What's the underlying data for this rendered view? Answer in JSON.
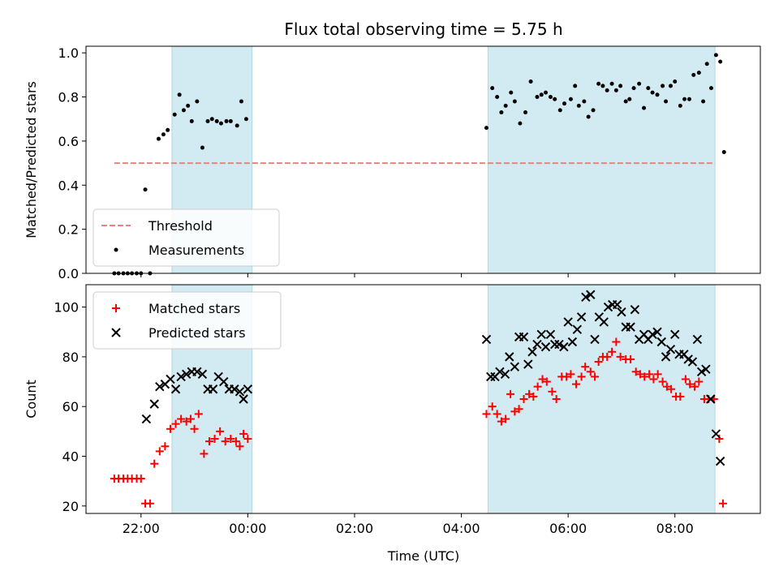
{
  "chart_data": {
    "title": "Flux total observing time = 5.75 h",
    "xlabel": "Time (UTC)",
    "x_ticks": [
      "22:00",
      "00:00",
      "02:00",
      "04:00",
      "06:00",
      "08:00"
    ],
    "x_ticks_hours": [
      22,
      24,
      26,
      28,
      30,
      32
    ],
    "xlim_hours": [
      20.97,
      33.6
    ],
    "shaded_intervals_hours": [
      [
        22.58,
        24.08
      ],
      [
        28.5,
        32.75
      ]
    ],
    "shade_color": "#add8e6",
    "subplots": [
      {
        "type": "scatter",
        "ylabel": "Matched/Predicted stars",
        "ylim": [
          0,
          1.03
        ],
        "yticks": [
          0.0,
          0.2,
          0.4,
          0.6,
          0.8,
          1.0
        ],
        "ytick_labels": [
          "0.0",
          "0.2",
          "0.4",
          "0.6",
          "0.8",
          "1.0"
        ],
        "legend_position": "lower-left",
        "threshold": {
          "name": "Threshold",
          "value": 0.5,
          "x_range": [
            21.5,
            32.75
          ],
          "color": "#f08080",
          "style": "dashed"
        },
        "series": [
          {
            "name": "Measurements",
            "color": "#000000",
            "points": [
              [
                21.5,
                0.0
              ],
              [
                21.58,
                0.0
              ],
              [
                21.67,
                0.0
              ],
              [
                21.75,
                0.0
              ],
              [
                21.83,
                0.0
              ],
              [
                21.92,
                0.0
              ],
              [
                22.0,
                0.0
              ],
              [
                22.08,
                0.38
              ],
              [
                22.17,
                0.0
              ],
              [
                22.33,
                0.61
              ],
              [
                22.42,
                0.63
              ],
              [
                22.5,
                0.65
              ],
              [
                22.63,
                0.72
              ],
              [
                22.72,
                0.81
              ],
              [
                22.8,
                0.74
              ],
              [
                22.88,
                0.76
              ],
              [
                22.95,
                0.69
              ],
              [
                23.05,
                0.78
              ],
              [
                23.15,
                0.57
              ],
              [
                23.25,
                0.69
              ],
              [
                23.33,
                0.7
              ],
              [
                23.42,
                0.69
              ],
              [
                23.5,
                0.68
              ],
              [
                23.6,
                0.69
              ],
              [
                23.68,
                0.69
              ],
              [
                23.8,
                0.67
              ],
              [
                23.88,
                0.78
              ],
              [
                23.97,
                0.7
              ],
              [
                28.47,
                0.66
              ],
              [
                28.58,
                0.84
              ],
              [
                28.67,
                0.8
              ],
              [
                28.75,
                0.73
              ],
              [
                28.83,
                0.76
              ],
              [
                28.93,
                0.82
              ],
              [
                29.0,
                0.78
              ],
              [
                29.1,
                0.68
              ],
              [
                29.2,
                0.73
              ],
              [
                29.3,
                0.87
              ],
              [
                29.42,
                0.8
              ],
              [
                29.5,
                0.81
              ],
              [
                29.58,
                0.82
              ],
              [
                29.67,
                0.8
              ],
              [
                29.75,
                0.79
              ],
              [
                29.85,
                0.74
              ],
              [
                29.93,
                0.77
              ],
              [
                30.05,
                0.79
              ],
              [
                30.13,
                0.85
              ],
              [
                30.2,
                0.76
              ],
              [
                30.3,
                0.78
              ],
              [
                30.38,
                0.71
              ],
              [
                30.47,
                0.74
              ],
              [
                30.57,
                0.86
              ],
              [
                30.65,
                0.85
              ],
              [
                30.73,
                0.83
              ],
              [
                30.82,
                0.86
              ],
              [
                30.9,
                0.83
              ],
              [
                30.98,
                0.85
              ],
              [
                31.08,
                0.78
              ],
              [
                31.15,
                0.79
              ],
              [
                31.23,
                0.84
              ],
              [
                31.33,
                0.86
              ],
              [
                31.42,
                0.75
              ],
              [
                31.5,
                0.84
              ],
              [
                31.58,
                0.82
              ],
              [
                31.67,
                0.81
              ],
              [
                31.77,
                0.85
              ],
              [
                31.83,
                0.78
              ],
              [
                31.92,
                0.85
              ],
              [
                32.0,
                0.87
              ],
              [
                32.1,
                0.76
              ],
              [
                32.18,
                0.79
              ],
              [
                32.27,
                0.79
              ],
              [
                32.35,
                0.9
              ],
              [
                32.45,
                0.91
              ],
              [
                32.53,
                0.78
              ],
              [
                32.6,
                0.95
              ],
              [
                32.68,
                0.84
              ],
              [
                32.77,
                0.99
              ],
              [
                32.85,
                0.96
              ],
              [
                32.92,
                0.55
              ]
            ]
          }
        ]
      },
      {
        "type": "scatter",
        "ylabel": "Count",
        "ylim": [
          17,
          109
        ],
        "yticks": [
          20,
          40,
          60,
          80,
          100
        ],
        "ytick_labels": [
          "20",
          "40",
          "60",
          "80",
          "100"
        ],
        "legend_position": "upper-left",
        "series": [
          {
            "name": "Matched stars",
            "marker": "plus",
            "color": "#ff0000",
            "points": [
              [
                21.5,
                31
              ],
              [
                21.58,
                31
              ],
              [
                21.67,
                31
              ],
              [
                21.75,
                31
              ],
              [
                21.83,
                31
              ],
              [
                21.92,
                31
              ],
              [
                22.0,
                31
              ],
              [
                22.08,
                21
              ],
              [
                22.17,
                21
              ],
              [
                22.25,
                37
              ],
              [
                22.35,
                42
              ],
              [
                22.45,
                44
              ],
              [
                22.55,
                51
              ],
              [
                22.65,
                53
              ],
              [
                22.75,
                55
              ],
              [
                22.85,
                54
              ],
              [
                22.93,
                55
              ],
              [
                23.0,
                51
              ],
              [
                23.08,
                57
              ],
              [
                23.18,
                41
              ],
              [
                23.28,
                46
              ],
              [
                23.38,
                47
              ],
              [
                23.48,
                50
              ],
              [
                23.58,
                46
              ],
              [
                23.68,
                47
              ],
              [
                23.78,
                46
              ],
              [
                23.85,
                44
              ],
              [
                23.92,
                49
              ],
              [
                24.0,
                47
              ],
              [
                28.47,
                57
              ],
              [
                28.58,
                60
              ],
              [
                28.67,
                57
              ],
              [
                28.75,
                54
              ],
              [
                28.83,
                55
              ],
              [
                28.92,
                65
              ],
              [
                29.0,
                58
              ],
              [
                29.08,
                59
              ],
              [
                29.17,
                63
              ],
              [
                29.27,
                65
              ],
              [
                29.35,
                64
              ],
              [
                29.43,
                68
              ],
              [
                29.52,
                71
              ],
              [
                29.6,
                70
              ],
              [
                29.7,
                66
              ],
              [
                29.78,
                63
              ],
              [
                29.88,
                72
              ],
              [
                29.97,
                72
              ],
              [
                30.05,
                73
              ],
              [
                30.15,
                69
              ],
              [
                30.25,
                72
              ],
              [
                30.32,
                76
              ],
              [
                30.42,
                74
              ],
              [
                30.5,
                72
              ],
              [
                30.57,
                78
              ],
              [
                30.65,
                80
              ],
              [
                30.73,
                80
              ],
              [
                30.82,
                82
              ],
              [
                30.9,
                86
              ],
              [
                30.98,
                80
              ],
              [
                31.08,
                79
              ],
              [
                31.17,
                79
              ],
              [
                31.27,
                74
              ],
              [
                31.35,
                73
              ],
              [
                31.43,
                72
              ],
              [
                31.52,
                73
              ],
              [
                31.6,
                71
              ],
              [
                31.68,
                73
              ],
              [
                31.77,
                70
              ],
              [
                31.85,
                68
              ],
              [
                31.93,
                67
              ],
              [
                32.02,
                64
              ],
              [
                32.1,
                64
              ],
              [
                32.2,
                71
              ],
              [
                32.28,
                69
              ],
              [
                32.37,
                68
              ],
              [
                32.45,
                70
              ],
              [
                32.55,
                63
              ],
              [
                32.63,
                63
              ],
              [
                32.73,
                63
              ],
              [
                32.83,
                47
              ],
              [
                32.9,
                21
              ]
            ]
          },
          {
            "name": "Predicted stars",
            "marker": "x",
            "color": "#000000",
            "points": [
              [
                22.1,
                55
              ],
              [
                22.25,
                61
              ],
              [
                22.35,
                68
              ],
              [
                22.45,
                69
              ],
              [
                22.55,
                71
              ],
              [
                22.65,
                67
              ],
              [
                22.75,
                72
              ],
              [
                22.85,
                73
              ],
              [
                22.95,
                74
              ],
              [
                23.05,
                74
              ],
              [
                23.15,
                73
              ],
              [
                23.25,
                67
              ],
              [
                23.35,
                67
              ],
              [
                23.45,
                72
              ],
              [
                23.55,
                70
              ],
              [
                23.65,
                67
              ],
              [
                23.75,
                67
              ],
              [
                23.85,
                66
              ],
              [
                23.92,
                63
              ],
              [
                24.0,
                67
              ],
              [
                28.47,
                87
              ],
              [
                28.55,
                72
              ],
              [
                28.63,
                72
              ],
              [
                28.72,
                74
              ],
              [
                28.82,
                73
              ],
              [
                28.9,
                80
              ],
              [
                29.0,
                76
              ],
              [
                29.08,
                88
              ],
              [
                29.17,
                88
              ],
              [
                29.25,
                77
              ],
              [
                29.33,
                82
              ],
              [
                29.42,
                85
              ],
              [
                29.5,
                89
              ],
              [
                29.58,
                84
              ],
              [
                29.67,
                89
              ],
              [
                29.75,
                85
              ],
              [
                29.83,
                85
              ],
              [
                29.92,
                84
              ],
              [
                30.0,
                94
              ],
              [
                30.08,
                86
              ],
              [
                30.17,
                91
              ],
              [
                30.25,
                96
              ],
              [
                30.33,
                104
              ],
              [
                30.42,
                105
              ],
              [
                30.5,
                87
              ],
              [
                30.58,
                96
              ],
              [
                30.67,
                94
              ],
              [
                30.75,
                100
              ],
              [
                30.83,
                101
              ],
              [
                30.92,
                101
              ],
              [
                31.0,
                98
              ],
              [
                31.08,
                92
              ],
              [
                31.17,
                92
              ],
              [
                31.25,
                99
              ],
              [
                31.33,
                87
              ],
              [
                31.42,
                89
              ],
              [
                31.5,
                87
              ],
              [
                31.58,
                89
              ],
              [
                31.67,
                90
              ],
              [
                31.75,
                86
              ],
              [
                31.83,
                80
              ],
              [
                31.92,
                83
              ],
              [
                32.0,
                89
              ],
              [
                32.08,
                81
              ],
              [
                32.17,
                81
              ],
              [
                32.25,
                79
              ],
              [
                32.33,
                78
              ],
              [
                32.42,
                87
              ],
              [
                32.5,
                74
              ],
              [
                32.58,
                75
              ],
              [
                32.67,
                63
              ],
              [
                32.77,
                49
              ],
              [
                32.85,
                38
              ]
            ]
          }
        ]
      }
    ]
  }
}
